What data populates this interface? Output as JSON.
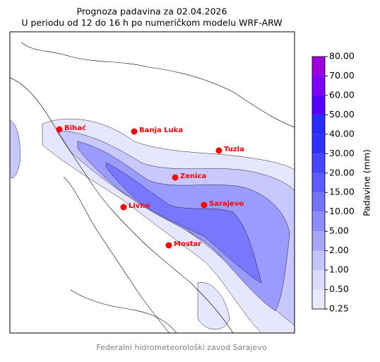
{
  "title_line1": "Prognoza padavina za 02.04.2026",
  "title_line2": "U periodu od 12 do 16 h po numeričkom modelu WRF-ARW",
  "cities": [
    "Bihać",
    "Banja Luka",
    "Tuzla",
    "Zenica",
    "Sarajevo",
    "Livno",
    "Mostar"
  ],
  "colorbar": {
    "label": "Padavine (mm)",
    "ticks": [
      {
        "value": 0.25,
        "label": "0.25"
      },
      {
        "value": 0.5,
        "label": "0.50"
      },
      {
        "value": 1,
        "label": "1.00"
      },
      {
        "value": 2,
        "label": "2.00"
      },
      {
        "value": 5,
        "label": "5.00"
      },
      {
        "value": 10,
        "label": "10.00"
      },
      {
        "value": 15,
        "label": "15.00"
      },
      {
        "value": 20,
        "label": "20.00"
      },
      {
        "value": 30,
        "label": "30.00"
      },
      {
        "value": 40,
        "label": "40.00"
      },
      {
        "value": 50,
        "label": "50.00"
      },
      {
        "value": 60,
        "label": "60.00"
      },
      {
        "value": 70,
        "label": "70.00"
      },
      {
        "value": 80,
        "label": "80.00"
      }
    ],
    "colors": [
      "#eaeaff",
      "#dcdcff",
      "#c4c4ff",
      "#a6a6ff",
      "#8c8cff",
      "#7474ff",
      "#5c5cff",
      "#4646ff",
      "#3030ff",
      "#2a2aff",
      "#5500ff",
      "#8000ff",
      "#9f00e0"
    ]
  },
  "footer": "Federalni hidrometeorološki zavod Sarajevo"
}
